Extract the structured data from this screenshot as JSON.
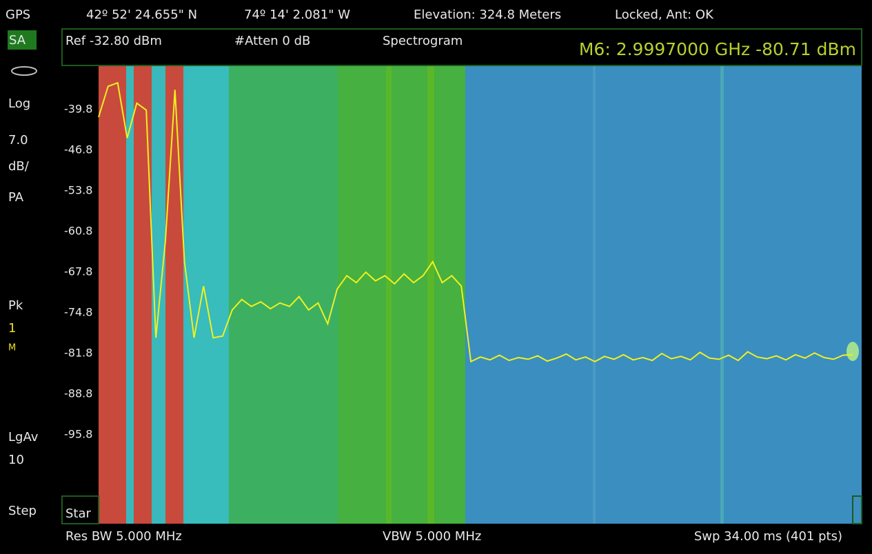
{
  "status_bar": {
    "gps": "GPS",
    "latitude": "42º 52' 24.655\" N",
    "longitude": "74º 14' 2.081\" W",
    "elevation": "Elevation: 324.8 Meters",
    "lock": "Locked, Ant: OK"
  },
  "sidebar": {
    "mode": "SA",
    "scale": "Log",
    "scale_value": "7.0",
    "scale_unit": "dB/",
    "preamp": "PA",
    "detector": "Pk",
    "trace": "1",
    "trace_mode": "M",
    "average": "LgAv",
    "average_count": "10",
    "step": "Step"
  },
  "header": {
    "ref": "Ref -32.80 dBm",
    "atten": "#Atten 0 dB",
    "view": "Spectrogram",
    "marker": "M6:  2.9997000 GHz  -80.71 dBm"
  },
  "footer": {
    "start": "Star",
    "rbw": "Res BW 5.000 MHz",
    "vbw": "VBW 5.000 MHz",
    "sweep": "Swp 34.00 ms (401 pts)"
  },
  "chart_data": {
    "type": "line",
    "ylim": [
      -102.8,
      -32.8
    ],
    "yticks": [
      -39.8,
      -46.8,
      -53.8,
      -60.8,
      -67.8,
      -74.8,
      -81.8,
      -88.8,
      -95.8
    ],
    "grid": false,
    "series": [
      {
        "color": "#f0f020",
        "values": [
          -41.1,
          -35.8,
          -35.2,
          -44.7,
          -38.7,
          -39.9,
          -79.1,
          -62.5,
          -36.4,
          -66.0,
          -79.1,
          -70.2,
          -79.1,
          -78.8,
          -74.3,
          -72.5,
          -73.7,
          -72.9,
          -74.1,
          -73.1,
          -73.7,
          -72.0,
          -74.3,
          -73.1,
          -76.7,
          -70.7,
          -68.4,
          -69.6,
          -67.8,
          -69.3,
          -68.4,
          -69.8,
          -68.1,
          -69.6,
          -68.4,
          -66.0,
          -69.6,
          -68.4,
          -70.2,
          -83.2,
          -82.4,
          -82.9,
          -82.1,
          -83.0,
          -82.5,
          -82.8,
          -82.2,
          -83.1,
          -82.6,
          -81.9,
          -82.9,
          -82.4,
          -83.2,
          -82.3,
          -82.8,
          -82.0,
          -82.9,
          -82.5,
          -83.0,
          -81.8,
          -82.7,
          -82.3,
          -82.9,
          -81.6,
          -82.6,
          -82.8,
          -82.1,
          -83.0,
          -81.5,
          -82.4,
          -82.7,
          -82.2,
          -82.9,
          -82.0,
          -82.6,
          -81.7,
          -82.5,
          -82.8,
          -82.1,
          -82.0
        ]
      }
    ]
  }
}
